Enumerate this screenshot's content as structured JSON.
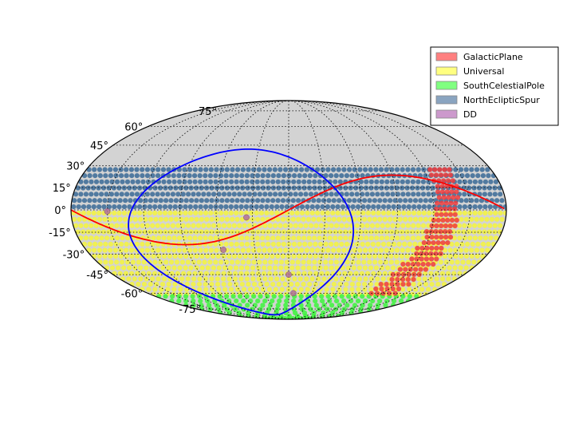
{
  "chart_data": {
    "type": "scatter",
    "projection": "mollweide",
    "title": "",
    "xlabel": "",
    "ylabel": "",
    "lat_ticks": [
      "75°",
      "60°",
      "45°",
      "30°",
      "15°",
      "0°",
      "-15°",
      "-30°",
      "-45°",
      "-60°",
      "-75°"
    ],
    "lat_tick_values": [
      75,
      60,
      45,
      30,
      15,
      0,
      -15,
      -30,
      -45,
      -60,
      -75
    ],
    "grid": true,
    "legend_position": "top-right",
    "legend": [
      {
        "name": "GalacticPlane",
        "color": "#ff8080"
      },
      {
        "name": "Universal",
        "color": "#ffff80"
      },
      {
        "name": "SouthCelestialPole",
        "color": "#80ff80"
      },
      {
        "name": "NorthEclipticSpur",
        "color": "#8aa4c0"
      },
      {
        "name": "DD",
        "color": "#cc99cc"
      }
    ],
    "regions": {
      "Universal": {
        "color": "#f4f43c",
        "lat_range": [
          -63,
          0
        ],
        "lon_range": [
          -180,
          180
        ]
      },
      "SouthCelestialPole": {
        "color": "#3cf43c",
        "lat_range": [
          -90,
          -62
        ],
        "lon_range": [
          -180,
          180
        ]
      },
      "NorthEclipticSpur": {
        "color": "#3a6a96",
        "lat_range": [
          0,
          28
        ],
        "lon_range": [
          -180,
          180
        ]
      },
      "GalacticPlane": {
        "color": "#f03c3c",
        "lat_range": [
          -62,
          30
        ],
        "lon_center": 130,
        "lon_halfwidth": 10
      }
    },
    "dd_fields": [
      {
        "lon": -150,
        "lat": -1
      },
      {
        "lon": -35,
        "lat": -5
      },
      {
        "lon": -58,
        "lat": -27
      },
      {
        "lon": 0,
        "lat": -45
      },
      {
        "lon": 6,
        "lat": -60
      }
    ],
    "lines": [
      {
        "name": "ecliptic",
        "color": "#ff0000"
      },
      {
        "name": "galactic-plane",
        "color": "#0000ff"
      }
    ],
    "background_color": "#d3d3d3"
  }
}
